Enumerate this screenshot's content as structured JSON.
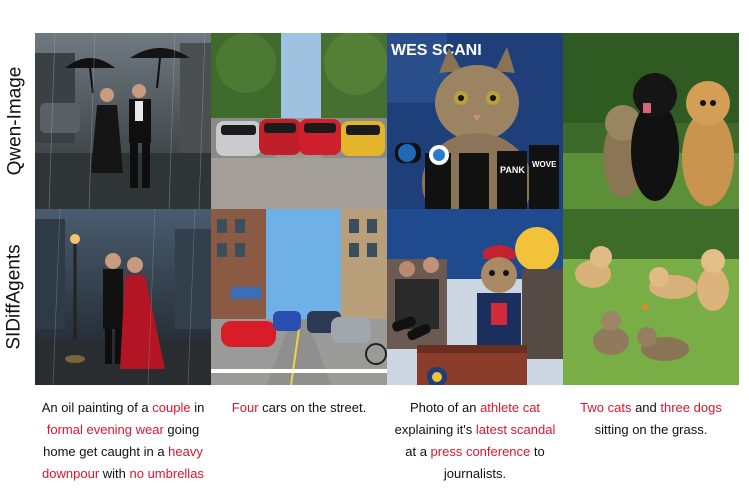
{
  "rows": [
    {
      "label": "Qwen-Image"
    },
    {
      "label": "SIDiffAgents"
    }
  ],
  "captions": [
    {
      "parts": [
        {
          "text": "An oil painting of a ",
          "highlight": false
        },
        {
          "text": "couple",
          "highlight": true
        },
        {
          "text": " in ",
          "highlight": false
        },
        {
          "text": "formal evening wear",
          "highlight": true
        },
        {
          "text": " going home get caught in a ",
          "highlight": false
        },
        {
          "text": "heavy downpour",
          "highlight": true
        },
        {
          "text": " with ",
          "highlight": false
        },
        {
          "text": "no umbrellas",
          "highlight": true
        }
      ]
    },
    {
      "parts": [
        {
          "text": "Four",
          "highlight": true
        },
        {
          "text": " cars on the street.",
          "highlight": false
        }
      ]
    },
    {
      "parts": [
        {
          "text": "Photo of an ",
          "highlight": false
        },
        {
          "text": "athlete cat",
          "highlight": true
        },
        {
          "text": " explaining it's ",
          "highlight": false
        },
        {
          "text": "latest scandal",
          "highlight": true
        },
        {
          "text": " at a ",
          "highlight": false
        },
        {
          "text": "press conference",
          "highlight": true
        },
        {
          "text": " to journalists.",
          "highlight": false
        }
      ]
    },
    {
      "parts": [
        {
          "text": "Two cats",
          "highlight": true
        },
        {
          "text": " and ",
          "highlight": false
        },
        {
          "text": "three dogs",
          "highlight": true
        },
        {
          "text": " sitting on the grass.",
          "highlight": false
        }
      ]
    }
  ],
  "images": {
    "r0c2_sign": "WES SCANI",
    "r0c2_mic": "PANK",
    "r0c2_mic2": "WOVE"
  },
  "colors": {
    "highlight": "#e0142c",
    "text": "#111111"
  }
}
